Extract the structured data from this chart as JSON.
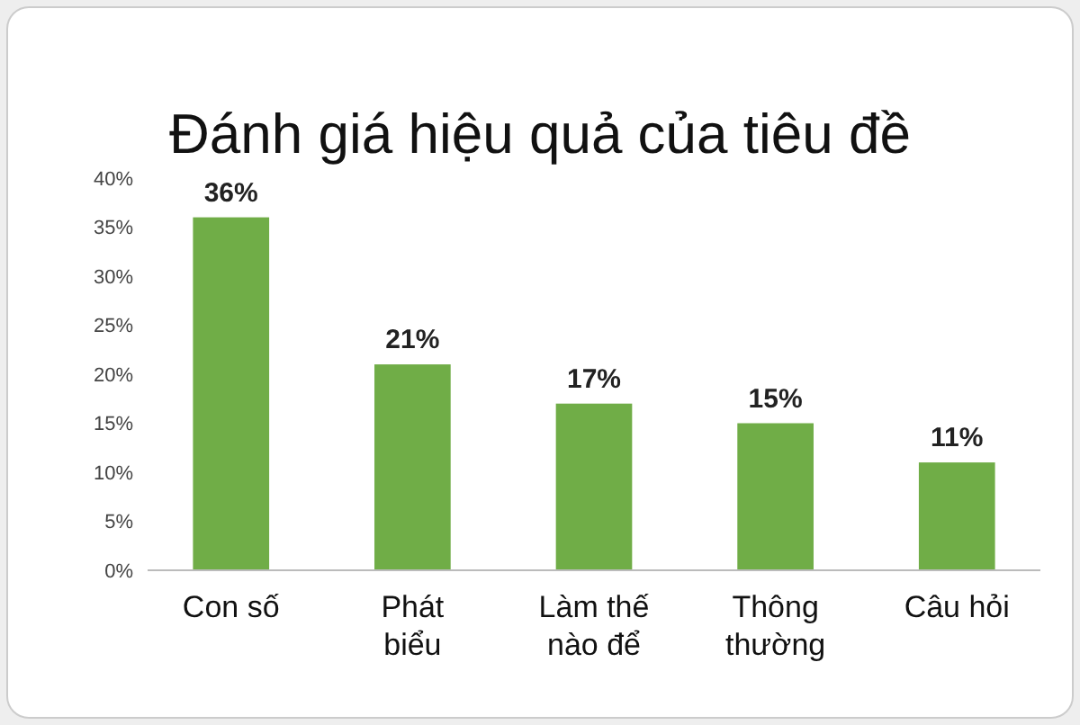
{
  "chart_data": {
    "type": "bar",
    "title": "Đánh giá hiệu quả của tiêu đề",
    "categories": [
      "Con số",
      "Phát biểu",
      "Làm thế nào để",
      "Thông thường",
      "Câu hỏi"
    ],
    "values": [
      36,
      21,
      17,
      15,
      11
    ],
    "color": "#70ad47",
    "value_labels": [
      "36%",
      "21%",
      "17%",
      "15%",
      "11%"
    ],
    "ylim": [
      0,
      40
    ],
    "yticks": [
      {
        "value": 0,
        "label": "0%"
      },
      {
        "value": 5,
        "label": "5%"
      },
      {
        "value": 10,
        "label": "10%"
      },
      {
        "value": 15,
        "label": "15%"
      },
      {
        "value": 20,
        "label": "20%"
      },
      {
        "value": 25,
        "label": "25%"
      },
      {
        "value": 30,
        "label": "30%"
      },
      {
        "value": 35,
        "label": "35%"
      },
      {
        "value": 40,
        "label": "40%"
      }
    ]
  }
}
